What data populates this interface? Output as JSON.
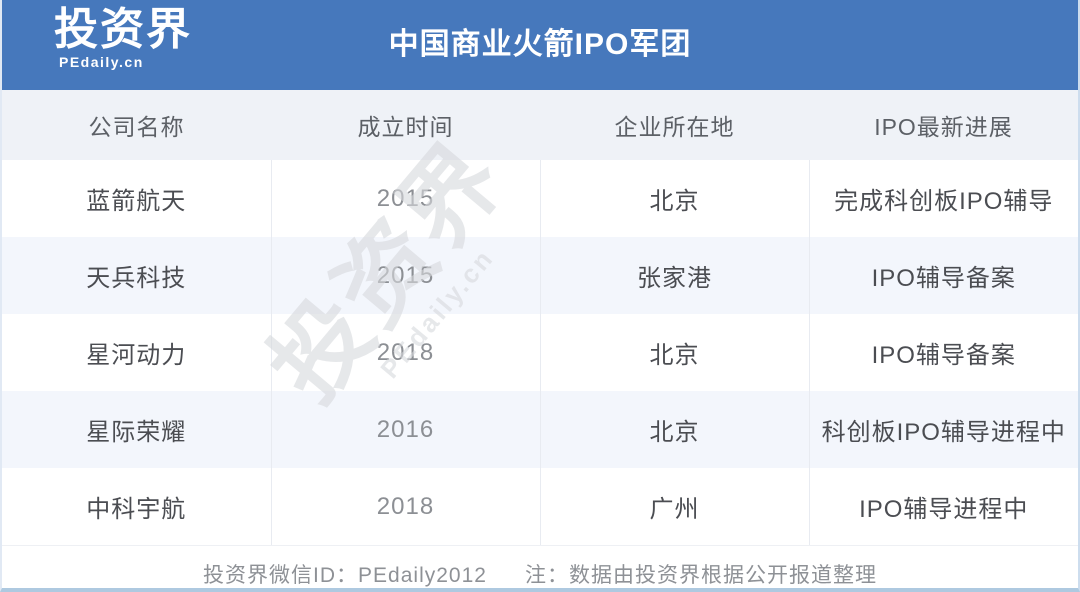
{
  "brand": {
    "name": "投资界",
    "site": "PEdaily.cn"
  },
  "header": {
    "title": "中国商业火箭IPO军团"
  },
  "chart_data": {
    "type": "table",
    "title": "中国商业火箭IPO军团",
    "columns": [
      "公司名称",
      "成立时间",
      "企业所在地",
      "IPO最新进展"
    ],
    "rows": [
      [
        "蓝箭航天",
        "2015",
        "北京",
        "完成科创板IPO辅导"
      ],
      [
        "天兵科技",
        "2015",
        "张家港",
        "IPO辅导备案"
      ],
      [
        "星河动力",
        "2018",
        "北京",
        "IPO辅导备案"
      ],
      [
        "星际荣耀",
        "2016",
        "北京",
        "科创板IPO辅导进程中"
      ],
      [
        "中科宇航",
        "2018",
        "广州",
        "IPO辅导进程中"
      ]
    ]
  },
  "watermark": {
    "name": "投资界",
    "site": "PEdaily.cn"
  },
  "footer": {
    "wechat_id": "投资界微信ID：PEdaily2012",
    "note": "注：数据由投资界根据公开报道整理"
  },
  "colors": {
    "header_blue": "#4678bc",
    "table_header_bg": "#eff2f7",
    "alt_row_bg": "#f3f6fc",
    "cell_divider": "#e8ebf1",
    "bottom_border": "#aec9e0"
  }
}
